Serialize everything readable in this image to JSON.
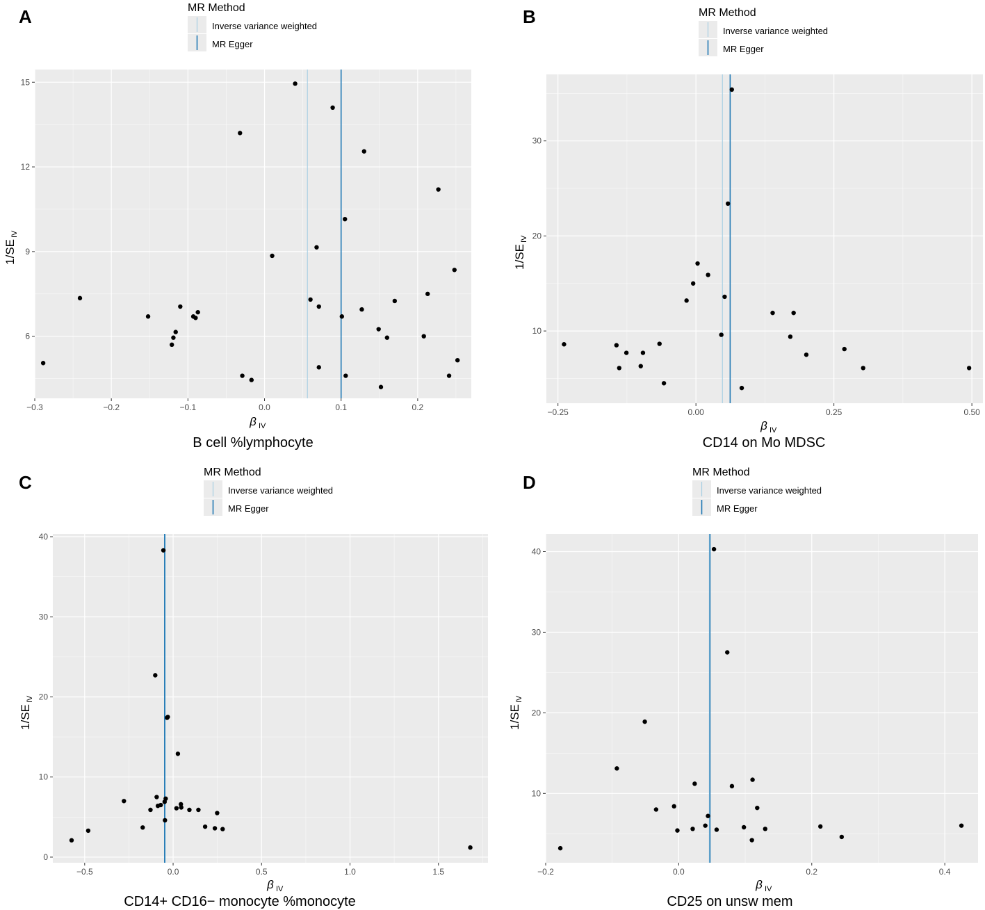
{
  "colors": {
    "panel_bg": "#ebebeb",
    "grid_major": "#ffffff",
    "ivw_line": "#a6cee3",
    "egger_line": "#1f78b4",
    "points": "#000000"
  },
  "chart_data": [
    {
      "type": "scatter",
      "panel": "A",
      "title": "B cell %lymphocyte",
      "xlabel": "β",
      "xlabel_sub": "IV",
      "ylabel": "1/SE",
      "ylabel_sub": "IV",
      "legend": {
        "title": "MR Method",
        "items": [
          "Inverse variance weighted",
          "MR Egger"
        ]
      },
      "xlim": [
        -0.3,
        0.27
      ],
      "ylim": [
        3.8,
        15.45
      ],
      "xticks": [
        -0.3,
        -0.2,
        -0.1,
        0.0,
        0.1,
        0.2
      ],
      "xtick_labels": [
        "−0.3",
        "−0.2",
        "−0.1",
        "0.0",
        "0.1",
        "0.2"
      ],
      "yticks": [
        6,
        9,
        12,
        15
      ],
      "ytick_labels": [
        "6",
        "9",
        "12",
        "15"
      ],
      "lines": {
        "ivw": 0.056,
        "egger": 0.1
      },
      "points": [
        [
          -0.289,
          5.05
        ],
        [
          -0.241,
          7.35
        ],
        [
          -0.152,
          6.7
        ],
        [
          -0.121,
          5.7
        ],
        [
          -0.119,
          5.95
        ],
        [
          -0.116,
          6.15
        ],
        [
          -0.11,
          7.05
        ],
        [
          -0.093,
          6.7
        ],
        [
          -0.09,
          6.65
        ],
        [
          -0.087,
          6.85
        ],
        [
          -0.032,
          13.2
        ],
        [
          -0.029,
          4.6
        ],
        [
          -0.017,
          4.45
        ],
        [
          0.01,
          8.85
        ],
        [
          0.04,
          14.95
        ],
        [
          0.06,
          7.3
        ],
        [
          0.068,
          9.15
        ],
        [
          0.071,
          7.05
        ],
        [
          0.071,
          4.9
        ],
        [
          0.089,
          14.1
        ],
        [
          0.101,
          6.7
        ],
        [
          0.105,
          10.15
        ],
        [
          0.106,
          4.6
        ],
        [
          0.127,
          6.95
        ],
        [
          0.13,
          12.55
        ],
        [
          0.149,
          6.25
        ],
        [
          0.152,
          4.2
        ],
        [
          0.16,
          5.95
        ],
        [
          0.17,
          7.25
        ],
        [
          0.208,
          6.0
        ],
        [
          0.213,
          7.5
        ],
        [
          0.227,
          11.2
        ],
        [
          0.241,
          4.6
        ],
        [
          0.248,
          8.35
        ],
        [
          0.252,
          5.15
        ]
      ]
    },
    {
      "type": "scatter",
      "panel": "B",
      "title": "CD14 on Mo MDSC",
      "xlabel": "β",
      "xlabel_sub": "IV",
      "ylabel": "1/SE",
      "ylabel_sub": "IV",
      "legend": {
        "title": "MR Method",
        "items": [
          "Inverse variance weighted",
          "MR Egger"
        ]
      },
      "xlim": [
        -0.271,
        0.52
      ],
      "ylim": [
        2.4,
        37.0
      ],
      "xticks": [
        -0.25,
        0.0,
        0.25,
        0.5
      ],
      "xtick_labels": [
        "−0.25",
        "0.00",
        "0.25",
        "0.50"
      ],
      "yticks": [
        10,
        20,
        30
      ],
      "ytick_labels": [
        "10",
        "20",
        "30"
      ],
      "lines": {
        "ivw": 0.048,
        "egger": 0.062
      },
      "points": [
        [
          -0.239,
          8.6
        ],
        [
          -0.144,
          8.5
        ],
        [
          -0.139,
          6.1
        ],
        [
          -0.126,
          7.7
        ],
        [
          -0.1,
          6.3
        ],
        [
          -0.096,
          7.7
        ],
        [
          -0.066,
          8.65
        ],
        [
          -0.058,
          4.5
        ],
        [
          -0.017,
          13.2
        ],
        [
          -0.005,
          15.0
        ],
        [
          0.003,
          17.1
        ],
        [
          0.022,
          15.9
        ],
        [
          0.046,
          9.6
        ],
        [
          0.052,
          13.6
        ],
        [
          0.058,
          23.4
        ],
        [
          0.065,
          35.4
        ],
        [
          0.083,
          4.0
        ],
        [
          0.139,
          11.9
        ],
        [
          0.171,
          9.4
        ],
        [
          0.177,
          11.9
        ],
        [
          0.2,
          7.5
        ],
        [
          0.269,
          8.1
        ],
        [
          0.303,
          6.1
        ],
        [
          0.495,
          6.1
        ]
      ]
    },
    {
      "type": "scatter",
      "panel": "C",
      "title": "CD14+ CD16− monocyte %monocyte",
      "xlabel": "β",
      "xlabel_sub": "IV",
      "ylabel": "1/SE",
      "ylabel_sub": "IV",
      "legend": {
        "title": "MR Method",
        "items": [
          "Inverse variance weighted",
          "MR Egger"
        ]
      },
      "xlim": [
        -0.68,
        1.78
      ],
      "ylim": [
        -0.7,
        40.35
      ],
      "xticks": [
        -0.5,
        0.0,
        0.5,
        1.0,
        1.5
      ],
      "xtick_labels": [
        "−0.5",
        "0.0",
        "0.5",
        "1.0",
        "1.5"
      ],
      "yticks": [
        0,
        10,
        20,
        30,
        40
      ],
      "ytick_labels": [
        "0",
        "10",
        "20",
        "30",
        "40"
      ],
      "lines": {
        "ivw": -0.044,
        "egger": -0.048
      },
      "points": [
        [
          -0.574,
          2.1
        ],
        [
          -0.48,
          3.3
        ],
        [
          -0.278,
          7.0
        ],
        [
          -0.172,
          3.7
        ],
        [
          -0.128,
          5.9
        ],
        [
          -0.101,
          22.7
        ],
        [
          -0.093,
          7.5
        ],
        [
          -0.086,
          6.4
        ],
        [
          -0.07,
          6.5
        ],
        [
          -0.055,
          38.3
        ],
        [
          -0.048,
          6.9
        ],
        [
          -0.046,
          4.6
        ],
        [
          -0.042,
          7.3
        ],
        [
          -0.034,
          17.4
        ],
        [
          -0.03,
          17.5
        ],
        [
          0.019,
          6.1
        ],
        [
          0.027,
          12.9
        ],
        [
          0.044,
          6.6
        ],
        [
          0.046,
          6.2
        ],
        [
          0.092,
          5.9
        ],
        [
          0.143,
          5.9
        ],
        [
          0.181,
          3.8
        ],
        [
          0.236,
          3.6
        ],
        [
          0.249,
          5.5
        ],
        [
          0.28,
          3.5
        ],
        [
          1.68,
          1.2
        ]
      ]
    },
    {
      "type": "scatter",
      "panel": "D",
      "title": "CD25 on unsw mem",
      "xlabel": "β",
      "xlabel_sub": "IV",
      "ylabel": "1/SE",
      "ylabel_sub": "IV",
      "legend": {
        "title": "MR Method",
        "items": [
          "Inverse variance weighted",
          "MR Egger"
        ]
      },
      "xlim": [
        -0.2,
        0.45
      ],
      "ylim": [
        1.4,
        42.2
      ],
      "xticks": [
        -0.2,
        0.0,
        0.2,
        0.4
      ],
      "xtick_labels": [
        "−0.2",
        "0.0",
        "0.2",
        "0.4"
      ],
      "yticks": [
        10,
        20,
        30,
        40
      ],
      "ytick_labels": [
        "10",
        "20",
        "30",
        "40"
      ],
      "lines": {
        "ivw": 0.046,
        "egger": 0.047
      },
      "points": [
        [
          -0.178,
          3.2
        ],
        [
          -0.093,
          13.1
        ],
        [
          -0.051,
          18.9
        ],
        [
          -0.034,
          8.0
        ],
        [
          -0.007,
          8.4
        ],
        [
          -0.002,
          5.4
        ],
        [
          0.021,
          5.6
        ],
        [
          0.024,
          11.2
        ],
        [
          0.04,
          6.0
        ],
        [
          0.044,
          7.2
        ],
        [
          0.053,
          40.3
        ],
        [
          0.057,
          5.5
        ],
        [
          0.073,
          27.5
        ],
        [
          0.08,
          10.9
        ],
        [
          0.098,
          5.8
        ],
        [
          0.11,
          4.2
        ],
        [
          0.111,
          11.7
        ],
        [
          0.118,
          8.2
        ],
        [
          0.13,
          5.6
        ],
        [
          0.213,
          5.9
        ],
        [
          0.245,
          4.6
        ],
        [
          0.425,
          6.0
        ]
      ]
    }
  ]
}
